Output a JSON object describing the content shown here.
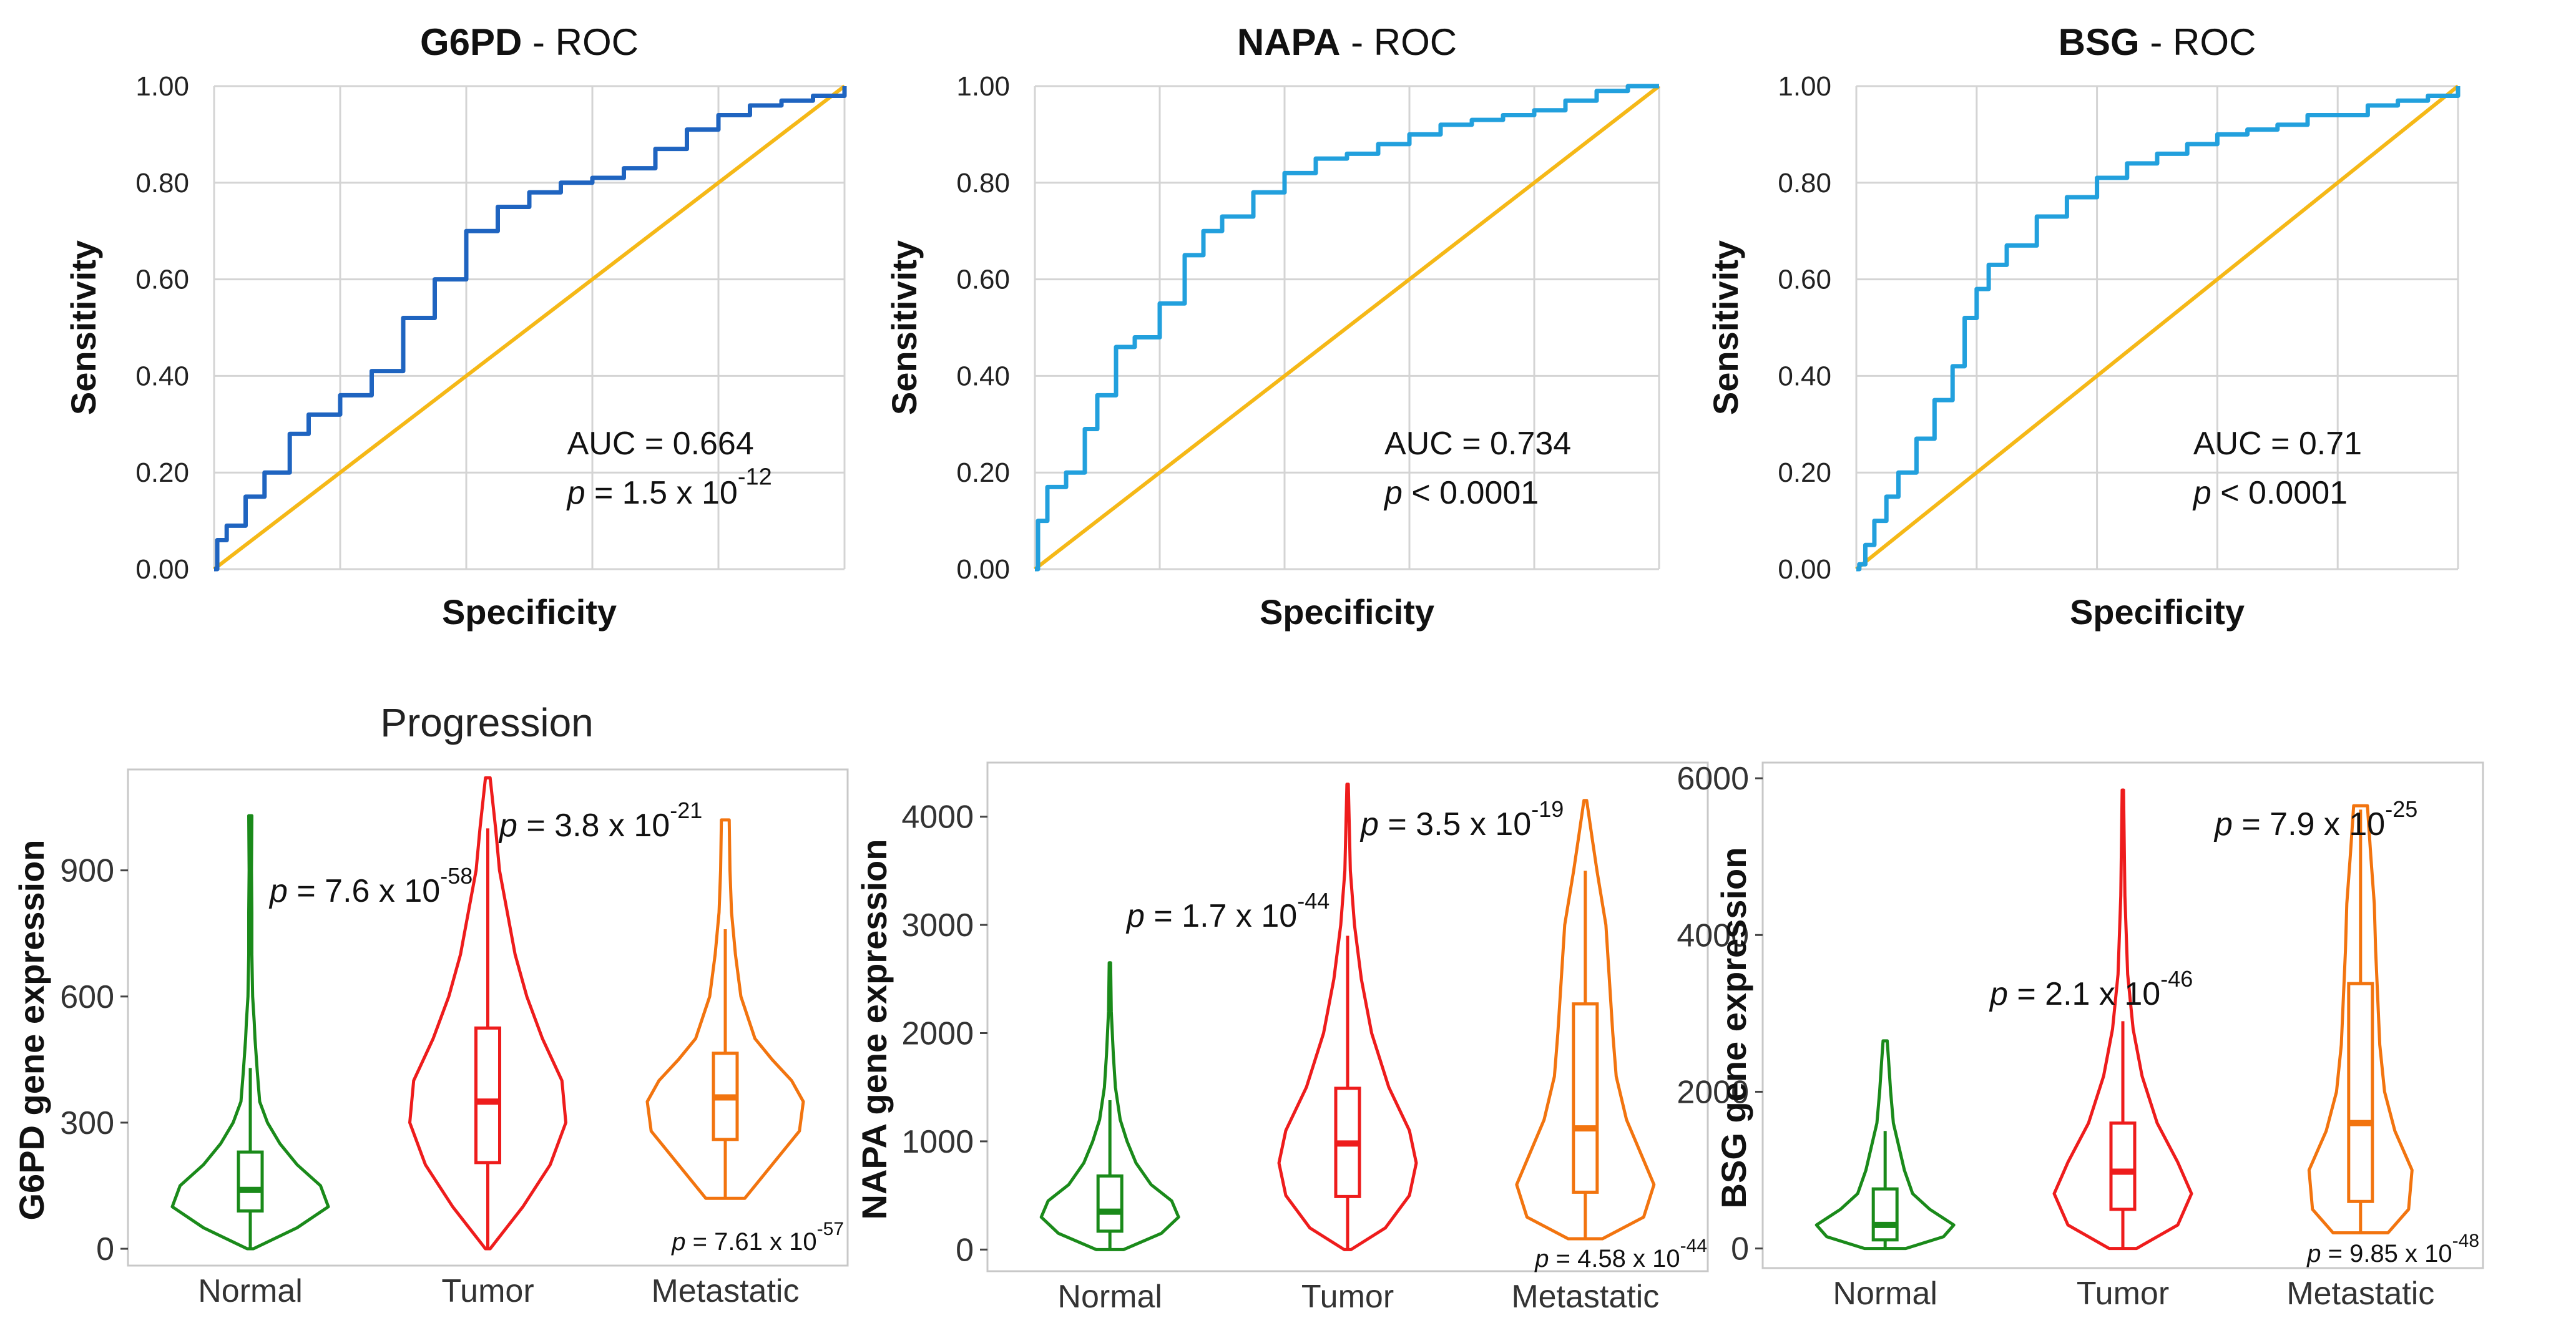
{
  "figure_title": "Progression",
  "chart_data": [
    {
      "type": "line",
      "gene": "G6PD",
      "title_suffix": "- ROC",
      "xlabel": "Specificity",
      "ylabel": "Sensitivity",
      "ylim": [
        0,
        1
      ],
      "y_ticks": [
        "0.00",
        "0.20",
        "0.40",
        "0.60",
        "0.80",
        "1.00"
      ],
      "auc_label": "AUC = 0.664",
      "p_prefix": "p",
      "p_text": " = 1.5 x 10",
      "p_exp": "-12",
      "curve_color": "#1f64c0",
      "reference_color": "#f5b817",
      "series": [
        {
          "name": "ROC",
          "x": [
            0,
            0.005,
            0.02,
            0.05,
            0.08,
            0.12,
            0.15,
            0.2,
            0.25,
            0.3,
            0.35,
            0.4,
            0.45,
            0.5,
            0.55,
            0.6,
            0.65,
            0.7,
            0.75,
            0.8,
            0.85,
            0.9,
            0.95,
            1
          ],
          "y": [
            0,
            0.06,
            0.09,
            0.15,
            0.2,
            0.28,
            0.32,
            0.36,
            0.41,
            0.52,
            0.6,
            0.7,
            0.75,
            0.78,
            0.8,
            0.81,
            0.83,
            0.87,
            0.91,
            0.94,
            0.96,
            0.97,
            0.98,
            1
          ]
        },
        {
          "name": "Reference",
          "x": [
            0,
            1
          ],
          "y": [
            0,
            1
          ]
        }
      ]
    },
    {
      "type": "line",
      "gene": "NAPA",
      "title_suffix": "- ROC",
      "xlabel": "Specificity",
      "ylabel": "Sensitivity",
      "ylim": [
        0,
        1
      ],
      "y_ticks": [
        "0.00",
        "0.20",
        "0.40",
        "0.60",
        "0.80",
        "1.00"
      ],
      "auc_label": "AUC = 0.734",
      "p_prefix": "p",
      "p_text": " < 0.0001",
      "p_exp": "",
      "curve_color": "#22a0dd",
      "reference_color": "#f5b817",
      "series": [
        {
          "name": "ROC",
          "x": [
            0,
            0.005,
            0.02,
            0.05,
            0.08,
            0.1,
            0.13,
            0.16,
            0.2,
            0.24,
            0.27,
            0.3,
            0.35,
            0.4,
            0.45,
            0.5,
            0.55,
            0.6,
            0.65,
            0.7,
            0.75,
            0.8,
            0.85,
            0.9,
            0.95,
            1
          ],
          "y": [
            0,
            0.1,
            0.17,
            0.2,
            0.29,
            0.36,
            0.46,
            0.48,
            0.55,
            0.65,
            0.7,
            0.73,
            0.78,
            0.82,
            0.85,
            0.86,
            0.88,
            0.9,
            0.92,
            0.93,
            0.94,
            0.95,
            0.97,
            0.99,
            1,
            1
          ]
        },
        {
          "name": "Reference",
          "x": [
            0,
            1
          ],
          "y": [
            0,
            1
          ]
        }
      ]
    },
    {
      "type": "line",
      "gene": "BSG",
      "title_suffix": "- ROC",
      "xlabel": "Specificity",
      "ylabel": "Sensitivity",
      "ylim": [
        0,
        1
      ],
      "y_ticks": [
        "0.00",
        "0.20",
        "0.40",
        "0.60",
        "0.80",
        "1.00"
      ],
      "auc_label": "AUC = 0.71",
      "p_prefix": "p",
      "p_text": " < 0.0001",
      "p_exp": "",
      "curve_color": "#22a0dd",
      "reference_color": "#f5b817",
      "series": [
        {
          "name": "ROC",
          "x": [
            0,
            0.005,
            0.015,
            0.03,
            0.05,
            0.07,
            0.1,
            0.13,
            0.16,
            0.18,
            0.2,
            0.22,
            0.25,
            0.3,
            0.35,
            0.4,
            0.45,
            0.5,
            0.55,
            0.6,
            0.65,
            0.7,
            0.75,
            0.8,
            0.85,
            0.9,
            0.95,
            1
          ],
          "y": [
            0,
            0.01,
            0.05,
            0.1,
            0.15,
            0.2,
            0.27,
            0.35,
            0.42,
            0.52,
            0.58,
            0.63,
            0.67,
            0.73,
            0.77,
            0.81,
            0.84,
            0.86,
            0.88,
            0.9,
            0.91,
            0.92,
            0.94,
            0.94,
            0.96,
            0.97,
            0.98,
            1
          ]
        },
        {
          "name": "Reference",
          "x": [
            0,
            1
          ],
          "y": [
            0,
            1
          ]
        }
      ]
    },
    {
      "type": "violin",
      "gene": "G6PD",
      "ylabel": "G6PD gene expression",
      "categories": [
        "Normal",
        "Tumor",
        "Metastatic"
      ],
      "colors": [
        "#1a8a1a",
        "#ee1c1c",
        "#f2740f"
      ],
      "ylim": [
        -40,
        1140
      ],
      "y_ticks": [
        0,
        300,
        600,
        900
      ],
      "violins": [
        {
          "min": 0,
          "max": 1030,
          "q1": 90,
          "median": 140,
          "q3": 230,
          "whisker_low": 0,
          "whisker_high": 430,
          "density": [
            [
              0,
              0.04
            ],
            [
              50,
              0.6
            ],
            [
              100,
              1
            ],
            [
              150,
              0.9
            ],
            [
              200,
              0.6
            ],
            [
              250,
              0.38
            ],
            [
              300,
              0.22
            ],
            [
              350,
              0.12
            ],
            [
              420,
              0.09
            ],
            [
              500,
              0.06
            ],
            [
              540,
              0.05
            ],
            [
              600,
              0.03
            ],
            [
              700,
              0.02
            ],
            [
              800,
              0.02
            ],
            [
              900,
              0.015
            ],
            [
              1030,
              0.02
            ]
          ]
        },
        {
          "min": 0,
          "max": 1120,
          "q1": 205,
          "median": 350,
          "q3": 525,
          "whisker_low": 0,
          "whisker_high": 1000,
          "density": [
            [
              0,
              0.03
            ],
            [
              100,
              0.45
            ],
            [
              200,
              0.8
            ],
            [
              300,
              1
            ],
            [
              400,
              0.95
            ],
            [
              500,
              0.7
            ],
            [
              600,
              0.5
            ],
            [
              700,
              0.35
            ],
            [
              800,
              0.25
            ],
            [
              900,
              0.15
            ],
            [
              1000,
              0.1
            ],
            [
              1120,
              0.03
            ]
          ]
        },
        {
          "min": 120,
          "max": 1020,
          "q1": 260,
          "median": 360,
          "q3": 465,
          "whisker_low": 120,
          "whisker_high": 760,
          "density": [
            [
              120,
              0.25
            ],
            [
              200,
              0.6
            ],
            [
              280,
              0.95
            ],
            [
              350,
              1
            ],
            [
              400,
              0.85
            ],
            [
              450,
              0.6
            ],
            [
              500,
              0.38
            ],
            [
              600,
              0.2
            ],
            [
              700,
              0.13
            ],
            [
              800,
              0.08
            ],
            [
              900,
              0.06
            ],
            [
              1020,
              0.05
            ]
          ]
        }
      ],
      "p_values": [
        {
          "prefix": "p",
          "text": " = 7.6 x 10",
          "exp": "-58"
        },
        {
          "prefix": "p",
          "text": " = 3.8 x 10",
          "exp": "-21"
        },
        {
          "prefix": "p",
          "text": " = 7.61 x 10",
          "exp": "-57"
        }
      ]
    },
    {
      "type": "violin",
      "gene": "NAPA",
      "ylabel": "NAPA gene expression",
      "categories": [
        "Normal",
        "Tumor",
        "Metastatic"
      ],
      "colors": [
        "#1a8a1a",
        "#ee1c1c",
        "#f2740f"
      ],
      "ylim": [
        -200,
        4500
      ],
      "y_ticks": [
        0,
        1000,
        2000,
        3000,
        4000
      ],
      "violins": [
        {
          "min": 0,
          "max": 2650,
          "q1": 170,
          "median": 350,
          "q3": 680,
          "whisker_low": 0,
          "whisker_high": 1380,
          "density": [
            [
              0,
              0.2
            ],
            [
              150,
              0.75
            ],
            [
              300,
              1
            ],
            [
              450,
              0.9
            ],
            [
              600,
              0.6
            ],
            [
              800,
              0.38
            ],
            [
              1000,
              0.25
            ],
            [
              1200,
              0.15
            ],
            [
              1500,
              0.08
            ],
            [
              1800,
              0.05
            ],
            [
              2200,
              0.02
            ],
            [
              2650,
              0.01
            ]
          ]
        },
        {
          "min": 0,
          "max": 4300,
          "q1": 490,
          "median": 980,
          "q3": 1490,
          "whisker_low": 0,
          "whisker_high": 2900,
          "density": [
            [
              0,
              0.05
            ],
            [
              200,
              0.55
            ],
            [
              500,
              0.9
            ],
            [
              800,
              1
            ],
            [
              1100,
              0.9
            ],
            [
              1500,
              0.6
            ],
            [
              2000,
              0.35
            ],
            [
              2500,
              0.2
            ],
            [
              3000,
              0.1
            ],
            [
              3500,
              0.04
            ],
            [
              4300,
              0.01
            ]
          ]
        },
        {
          "min": 100,
          "max": 4150,
          "q1": 530,
          "median": 1120,
          "q3": 2270,
          "whisker_low": 100,
          "whisker_high": 3500,
          "density": [
            [
              100,
              0.25
            ],
            [
              300,
              0.85
            ],
            [
              600,
              1
            ],
            [
              900,
              0.8
            ],
            [
              1200,
              0.6
            ],
            [
              1600,
              0.45
            ],
            [
              2000,
              0.4
            ],
            [
              2500,
              0.35
            ],
            [
              3000,
              0.3
            ],
            [
              3500,
              0.17
            ],
            [
              3800,
              0.1
            ],
            [
              4150,
              0.02
            ]
          ]
        }
      ],
      "p_values": [
        {
          "prefix": "p",
          "text": " = 1.7 x 10",
          "exp": "-44"
        },
        {
          "prefix": "p",
          "text": " = 3.5 x 10",
          "exp": "-19"
        },
        {
          "prefix": "p",
          "text": " = 4.58 x 10",
          "exp": "-44"
        }
      ]
    },
    {
      "type": "violin",
      "gene": "BSG",
      "ylabel": "BSG gene expression",
      "categories": [
        "Normal",
        "Tumor",
        "Metastatic"
      ],
      "colors": [
        "#1a8a1a",
        "#ee1c1c",
        "#f2740f"
      ],
      "ylim": [
        -250,
        6200
      ],
      "y_ticks": [
        0,
        2000,
        4000,
        6000
      ],
      "violins": [
        {
          "min": 0,
          "max": 2650,
          "q1": 110,
          "median": 300,
          "q3": 760,
          "whisker_low": 0,
          "whisker_high": 1500,
          "density": [
            [
              0,
              0.3
            ],
            [
              150,
              0.85
            ],
            [
              300,
              1
            ],
            [
              500,
              0.65
            ],
            [
              700,
              0.4
            ],
            [
              1000,
              0.28
            ],
            [
              1300,
              0.2
            ],
            [
              1600,
              0.12
            ],
            [
              2000,
              0.08
            ],
            [
              2400,
              0.05
            ],
            [
              2650,
              0.03
            ]
          ]
        },
        {
          "min": 0,
          "max": 5850,
          "q1": 500,
          "median": 980,
          "q3": 1600,
          "whisker_low": 0,
          "whisker_high": 2900,
          "density": [
            [
              0,
              0.2
            ],
            [
              300,
              0.8
            ],
            [
              700,
              1
            ],
            [
              1100,
              0.8
            ],
            [
              1600,
              0.5
            ],
            [
              2200,
              0.28
            ],
            [
              2800,
              0.15
            ],
            [
              3500,
              0.07
            ],
            [
              4500,
              0.03
            ],
            [
              5850,
              0.01
            ]
          ]
        },
        {
          "min": 200,
          "max": 5650,
          "q1": 600,
          "median": 1600,
          "q3": 3380,
          "whisker_low": 200,
          "whisker_high": 5600,
          "density": [
            [
              200,
              0.4
            ],
            [
              500,
              0.7
            ],
            [
              1000,
              0.75
            ],
            [
              1500,
              0.5
            ],
            [
              2000,
              0.35
            ],
            [
              2600,
              0.28
            ],
            [
              3200,
              0.25
            ],
            [
              3800,
              0.22
            ],
            [
              4400,
              0.2
            ],
            [
              5000,
              0.15
            ],
            [
              5650,
              0.1
            ]
          ]
        }
      ],
      "p_values": [
        {
          "prefix": "p",
          "text": " = 2.1 x 10",
          "exp": "-46"
        },
        {
          "prefix": "p",
          "text": " = 7.9 x 10",
          "exp": "-25"
        },
        {
          "prefix": "p",
          "text": " = 9.85 x 10",
          "exp": "-48"
        }
      ]
    }
  ]
}
